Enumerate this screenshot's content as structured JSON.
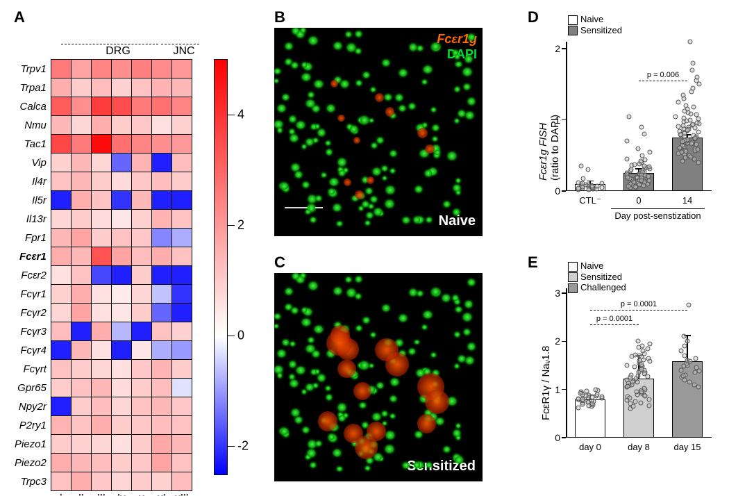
{
  "panelA": {
    "label": "A",
    "group_headers": [
      "DRG",
      "JNC"
    ],
    "rows": [
      "Trpv1",
      "Trpa1",
      "Calca",
      "Nmu",
      "Tac1",
      "Vip",
      "Il4r",
      "Il5r",
      "Il13r",
      "Fpr1",
      "Fcεr1",
      "Fcεr2",
      "Fcγr1",
      "Fcγr2",
      "Fcγr3",
      "Fcγr4",
      "Fcγrt",
      "Gpr65",
      "Npy2r",
      "P2ry1",
      "Piezo1",
      "Piezo2",
      "Trpc3"
    ],
    "bold_rows": [
      "Fcεr1"
    ],
    "cols": [
      "i",
      "ii",
      "iii",
      "iv",
      "v",
      "vi",
      "viii"
    ],
    "values": [
      [
        2.6,
        1.8,
        2.4,
        2.2,
        2.5,
        2.3,
        2.0
      ],
      [
        1.6,
        1.0,
        1.3,
        0.9,
        1.2,
        1.5,
        1.4
      ],
      [
        3.2,
        2.2,
        3.8,
        3.5,
        2.6,
        2.8,
        2.4
      ],
      [
        1.4,
        0.8,
        1.6,
        1.0,
        1.1,
        0.6,
        0.9
      ],
      [
        3.6,
        2.6,
        4.8,
        2.8,
        2.4,
        2.2,
        2.0
      ],
      [
        0.9,
        1.4,
        0.8,
        -1.5,
        1.5,
        -2.2,
        1.3
      ],
      [
        1.2,
        1.4,
        1.0,
        0.7,
        1.1,
        1.3,
        1.0
      ],
      [
        -2.2,
        1.6,
        1.2,
        -2.0,
        1.4,
        -2.2,
        -2.2
      ],
      [
        0.8,
        1.0,
        0.7,
        0.5,
        0.9,
        1.5,
        1.2
      ],
      [
        1.4,
        1.8,
        1.0,
        1.2,
        1.1,
        -1.2,
        -0.8
      ],
      [
        1.6,
        1.4,
        3.4,
        1.8,
        1.3,
        1.6,
        1.2
      ],
      [
        0.6,
        1.2,
        -1.8,
        -2.2,
        1.0,
        -2.2,
        -2.2
      ],
      [
        0.9,
        1.6,
        0.6,
        0.4,
        0.8,
        -0.6,
        -2.0
      ],
      [
        0.8,
        1.8,
        0.6,
        0.5,
        1.0,
        -1.5,
        -2.2
      ],
      [
        1.3,
        -2.2,
        1.6,
        -0.7,
        -2.2,
        1.2,
        0.9
      ],
      [
        -2.2,
        1.4,
        0.6,
        -2.2,
        0.5,
        -0.8,
        -1.0
      ],
      [
        1.2,
        1.0,
        0.8,
        0.6,
        1.1,
        1.5,
        1.0
      ],
      [
        1.0,
        1.2,
        1.4,
        0.7,
        1.0,
        1.3,
        -0.3
      ],
      [
        -2.2,
        1.0,
        1.3,
        0.8,
        1.2,
        1.4,
        1.1
      ],
      [
        1.5,
        1.2,
        1.6,
        1.0,
        1.1,
        1.3,
        1.2
      ],
      [
        1.0,
        0.9,
        0.8,
        0.6,
        1.0,
        1.7,
        1.4
      ],
      [
        1.6,
        1.4,
        1.3,
        1.0,
        1.1,
        1.8,
        1.2
      ],
      [
        1.2,
        1.6,
        1.1,
        0.8,
        1.0,
        0.9,
        1.3
      ]
    ],
    "scale": {
      "min": -2.5,
      "max": 5.0
    },
    "colorbar": {
      "ticks": [
        -2,
        0,
        2,
        4
      ],
      "colors_high": "#ff0000",
      "colors_mid": "#ffffff",
      "colors_low": "#0000ff"
    }
  },
  "panelB": {
    "label": "B",
    "legend1": "Fcεr1g",
    "legend2": "DAPI",
    "caption": "Naive"
  },
  "panelC": {
    "label": "C",
    "caption": "Sensitized"
  },
  "panelD": {
    "label": "D",
    "ylabel_line1": "Fcεr1g  FISH",
    "ylabel_line2": "(ratio to DAPI)",
    "legend": [
      {
        "label": "Naive",
        "fill": "#ffffff"
      },
      {
        "label": "Sensitized",
        "fill": "#808080"
      }
    ],
    "ylim": [
      0,
      2.1
    ],
    "yticks": [
      0,
      1,
      2
    ],
    "categories": [
      "CTL⁻",
      "0",
      "14"
    ],
    "xaxis_label": "Day post-senstization",
    "bars": [
      {
        "mean": 0.1,
        "err": 0.05,
        "fill": "#ffffff"
      },
      {
        "mean": 0.25,
        "err": 0.07,
        "fill": "#808080"
      },
      {
        "mean": 0.75,
        "err": 0.05,
        "fill": "#808080"
      }
    ],
    "pval": {
      "text": "p = 0.006",
      "from": 1,
      "to": 2,
      "y": 1.55
    },
    "points": {
      "0": [
        0.02,
        0.05,
        0.03,
        0.07,
        0.04,
        0.06,
        0.04,
        0.08,
        0.1,
        0.12,
        0.11,
        0.09,
        0.05,
        0.03,
        0.02,
        0.07,
        0.08,
        0.35,
        0.3,
        0.18,
        0.06,
        0.04,
        0.05,
        0.09,
        0.11,
        0.07
      ],
      "1": [
        0.05,
        0.08,
        0.1,
        0.12,
        0.15,
        0.18,
        0.14,
        0.2,
        0.22,
        0.25,
        0.17,
        0.19,
        0.23,
        0.28,
        0.3,
        0.32,
        0.35,
        0.4,
        0.45,
        0.38,
        0.16,
        0.21,
        0.24,
        0.27,
        0.29,
        0.33,
        0.5,
        0.55,
        0.6,
        0.7,
        0.8,
        0.9,
        1.05,
        0.13,
        0.11,
        0.09,
        0.26,
        0.31,
        0.36,
        0.42,
        0.18,
        0.22,
        0.14,
        0.07,
        0.05,
        0.12,
        0.19,
        0.15,
        0.08,
        0.06,
        0.34,
        0.44,
        0.2,
        0.1,
        0.37
      ],
      "2": [
        0.4,
        0.45,
        0.5,
        0.52,
        0.55,
        0.58,
        0.6,
        0.62,
        0.65,
        0.67,
        0.7,
        0.72,
        0.75,
        0.77,
        0.8,
        0.82,
        0.85,
        0.88,
        0.9,
        0.92,
        0.95,
        0.98,
        1.0,
        1.02,
        1.05,
        1.08,
        1.1,
        1.15,
        1.2,
        1.25,
        1.3,
        1.35,
        1.4,
        1.45,
        1.5,
        1.55,
        1.6,
        1.7,
        1.8,
        2.1,
        0.48,
        0.53,
        0.57,
        0.63,
        0.68,
        0.73,
        0.78,
        0.83,
        0.87,
        0.93,
        0.56,
        0.61,
        0.66,
        0.71,
        0.76,
        0.81,
        0.86,
        0.91,
        0.96,
        1.12,
        0.42,
        0.47,
        0.59,
        0.64,
        0.69,
        0.74,
        0.79,
        0.84,
        0.89,
        0.94,
        0.99,
        1.18,
        1.03,
        1.07
      ]
    }
  },
  "panelE": {
    "label": "E",
    "ylabel": "FcεR1γ / Naᵥ1.8",
    "legend": [
      {
        "label": "Naive",
        "fill": "#ffffff"
      },
      {
        "label": "Sensitized",
        "fill": "#cfcfcf"
      },
      {
        "label": "Challenged",
        "fill": "#9a9a9a"
      }
    ],
    "ylim": [
      0,
      3.1
    ],
    "yticks": [
      0,
      1,
      2,
      3
    ],
    "categories": [
      "day 0",
      "day 8",
      "day 15"
    ],
    "bars": [
      {
        "mean": 0.8,
        "err": 0.1,
        "fill": "#ffffff"
      },
      {
        "mean": 1.22,
        "err": 0.5,
        "fill": "#cfcfcf"
      },
      {
        "mean": 1.58,
        "err": 0.55,
        "fill": "#9a9a9a"
      }
    ],
    "pvals": [
      {
        "text": "p = 0.0001",
        "from": 0,
        "to": 1,
        "y": 2.35
      },
      {
        "text": "p = 0.0001",
        "from": 0,
        "to": 2,
        "y": 2.65
      }
    ],
    "points": {
      "0": [
        0.62,
        0.65,
        0.68,
        0.7,
        0.72,
        0.74,
        0.75,
        0.77,
        0.78,
        0.8,
        0.82,
        0.83,
        0.85,
        0.86,
        0.88,
        0.9,
        0.92,
        0.95,
        0.73,
        0.76,
        0.79,
        0.81,
        0.84,
        0.87,
        0.89,
        0.71,
        0.69,
        0.67,
        0.93,
        0.96,
        0.98,
        1.0
      ],
      "1": [
        0.6,
        0.65,
        0.7,
        0.75,
        0.8,
        0.85,
        0.9,
        0.95,
        1.0,
        1.05,
        1.1,
        1.15,
        1.2,
        1.25,
        1.3,
        1.35,
        1.4,
        1.45,
        1.5,
        1.55,
        1.6,
        1.65,
        1.7,
        1.75,
        1.8,
        1.85,
        1.9,
        1.95,
        2.0,
        0.78,
        0.88,
        0.98,
        1.08,
        1.18,
        1.28,
        1.38,
        1.48,
        1.58,
        1.68,
        0.72,
        0.82,
        0.92,
        1.02,
        1.12,
        1.22,
        1.32,
        1.42,
        1.52,
        1.62,
        1.72,
        0.67,
        0.87,
        1.07,
        1.27,
        1.47,
        1.67,
        1.87,
        0.95,
        1.15,
        1.35
      ],
      "2": [
        1.05,
        1.1,
        1.15,
        1.2,
        1.25,
        1.3,
        1.35,
        1.4,
        1.45,
        1.5,
        1.55,
        1.6,
        1.65,
        1.7,
        1.8,
        1.9,
        2.0,
        2.1,
        2.75,
        1.28,
        1.38,
        1.48,
        1.58
      ]
    }
  }
}
